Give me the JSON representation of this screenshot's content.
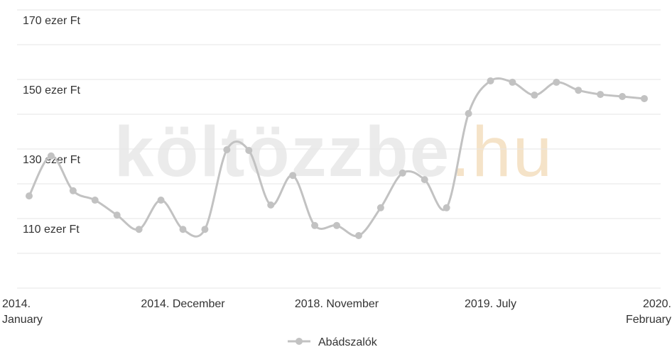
{
  "chart_data": {
    "type": "line",
    "watermark": [
      "költözzbe",
      ".hu"
    ],
    "categories": [
      "2014. January",
      null,
      null,
      null,
      null,
      null,
      null,
      "2014. December",
      null,
      null,
      null,
      null,
      null,
      null,
      "2018. November",
      null,
      null,
      null,
      null,
      null,
      null,
      "2019. July",
      null,
      null,
      null,
      null,
      null,
      null,
      "2020. February"
    ],
    "series": [
      {
        "name": "Abádszalók",
        "color": "#c2c2c2",
        "values": [
          116.5,
          128.0,
          118.0,
          115.3,
          111.0,
          106.9,
          115.3,
          106.9,
          106.9,
          129.8,
          129.6,
          113.9,
          122.4,
          108.0,
          108.0,
          105.1,
          113.1,
          123.1,
          121.2,
          113.1,
          140.2,
          149.6,
          149.2,
          145.5,
          149.2,
          146.9,
          145.7,
          145.1,
          144.5
        ]
      }
    ],
    "ylim": [
      90,
      170
    ],
    "yticks": [
      {
        "value": 110,
        "label": "110 ezer Ft"
      },
      {
        "value": 130,
        "label": "130 ezer Ft"
      },
      {
        "value": 150,
        "label": "150 ezer Ft"
      },
      {
        "value": 170,
        "label": "170 ezer Ft"
      }
    ],
    "grid_lines": [
      90,
      100,
      110,
      120,
      130,
      140,
      150,
      160,
      170
    ],
    "legend": "bottom"
  }
}
